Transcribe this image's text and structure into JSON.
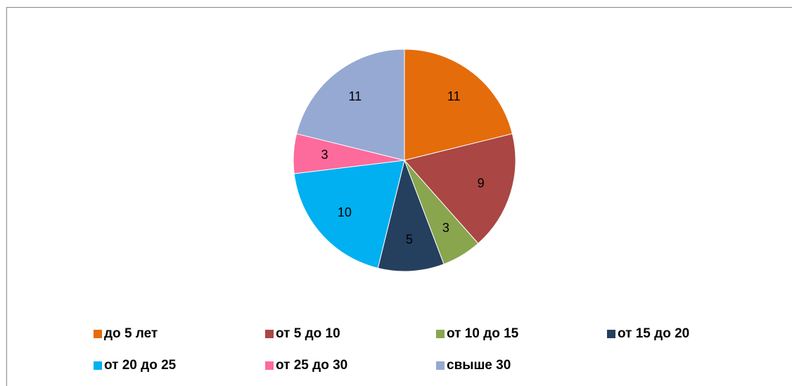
{
  "chart_data": {
    "type": "pie",
    "categories": [
      "до 5 лет",
      "от 5 до 10",
      "от 10 до 15",
      "от 15 до 20",
      "от 20 до 25",
      "от 25 до 30",
      "свыше 30"
    ],
    "values": [
      11,
      9,
      3,
      5,
      10,
      3,
      11
    ],
    "colors": [
      "#e46c0a",
      "#aa4643",
      "#89a54e",
      "#253f5f",
      "#00b0f0",
      "#fd6a9c",
      "#95a9d2"
    ],
    "legend": "bottom"
  }
}
